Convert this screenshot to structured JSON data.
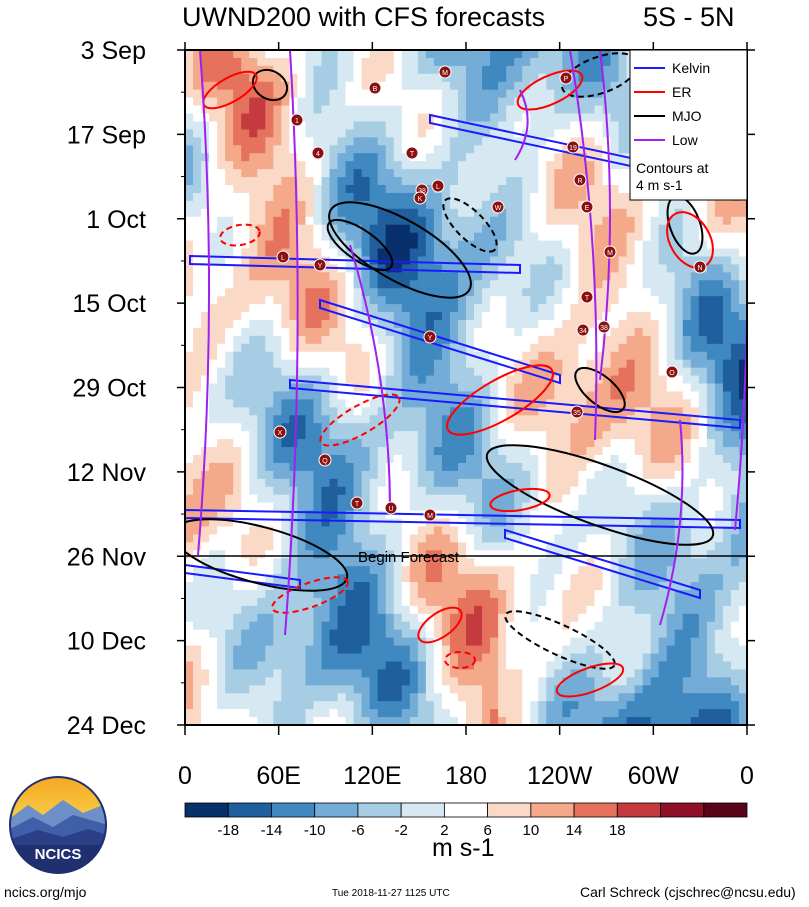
{
  "header": {
    "title": "UWND200 with CFS forecasts",
    "lat_range": "5S - 5N"
  },
  "legend": {
    "items": [
      {
        "label": "Kelvin",
        "color": "#1a1aff"
      },
      {
        "label": "ER",
        "color": "#ff0000"
      },
      {
        "label": "MJO",
        "color": "#000000"
      },
      {
        "label": "Low",
        "color": "#a020f0"
      }
    ],
    "note_line1": "Contours at",
    "note_line2": "4 m s-1"
  },
  "annotation": {
    "begin_forecast": "Begin Forecast"
  },
  "chart_data": {
    "type": "heatmap",
    "title": "UWND200 with CFS forecasts",
    "subtitle": "5S - 5N",
    "y_axis": {
      "ticks": [
        "3 Sep",
        "17 Sep",
        "1 Oct",
        "15 Oct",
        "29 Oct",
        "12 Nov",
        "26 Nov",
        "10 Dec",
        "24 Dec"
      ],
      "range": [
        "3 Sep",
        "24 Dec"
      ],
      "direction": "down"
    },
    "x_axis": {
      "ticks": [
        "0",
        "60E",
        "120E",
        "180",
        "120W",
        "60W",
        "0"
      ],
      "tick_values_deg": [
        0,
        60,
        120,
        180,
        240,
        300,
        360
      ],
      "range": [
        0,
        360
      ]
    },
    "forecast_start": "26 Nov",
    "colorbar": {
      "tick_labels": [
        "-18",
        "-14",
        "-10",
        "-6",
        "-2",
        "2",
        "6",
        "10",
        "14",
        "18"
      ],
      "colors": [
        "#08306b",
        "#1f5f9e",
        "#3f88c0",
        "#73acd6",
        "#a6cde4",
        "#d6e8f2",
        "#ffffff",
        "#fbd9c7",
        "#f4a98a",
        "#e4725c",
        "#c43a3f",
        "#8f1027",
        "#5a0418"
      ],
      "units": "m s-1"
    },
    "contour_interval": "4 m s-1",
    "series": [
      {
        "name": "Kelvin",
        "color": "#1a1aff"
      },
      {
        "name": "ER",
        "color": "#ff0000"
      },
      {
        "name": "MJO",
        "color": "#000000"
      },
      {
        "name": "Low",
        "color": "#a020f0"
      }
    ],
    "storm_markers": [
      "B",
      "M",
      "P",
      "1",
      "4",
      "T",
      "38",
      "L",
      "K",
      "W",
      "19",
      "R",
      "E",
      "L",
      "Y",
      "M",
      "N",
      "T",
      "Y",
      "34",
      "38",
      "O",
      "35",
      "X",
      "Q",
      "T",
      "U",
      "M"
    ]
  },
  "footer": {
    "left": "ncics.org/mjo",
    "middle": "Tue 2018-11-27 1125 UTC",
    "right": "Carl Schreck (cjschrec@ncsu.edu)",
    "logo_text": "NCICS"
  }
}
